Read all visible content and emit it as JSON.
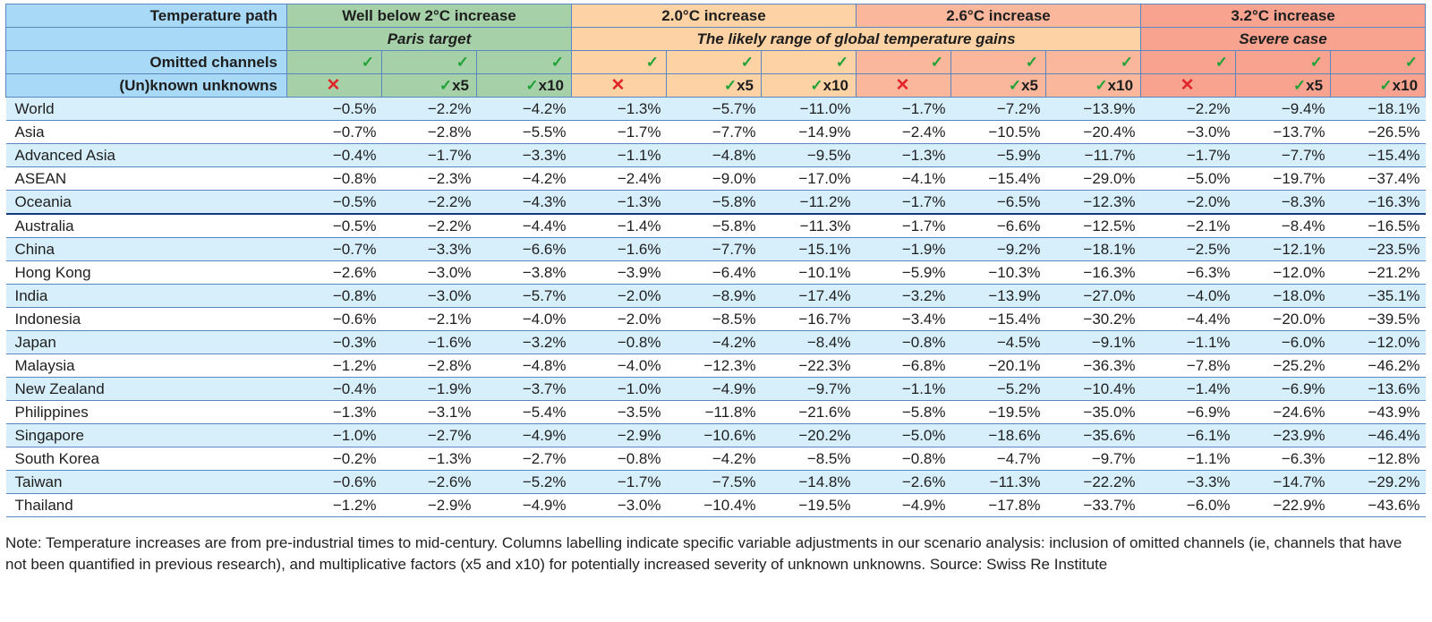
{
  "chart_data": {
    "type": "table",
    "row_header_labels": {
      "temperature_path": "Temperature path",
      "omitted_channels": "Omitted channels",
      "unknown_unknowns": "(Un)known unknowns"
    },
    "scenario_groups": [
      {
        "title": "Well below 2°C increase",
        "color": "#a6d1a8"
      },
      {
        "title": "2.0°C increase",
        "color": "#fdd2a4"
      },
      {
        "title": "2.6°C increase",
        "color": "#fbb79c"
      },
      {
        "title": "3.2°C increase",
        "color": "#f7a38f"
      }
    ],
    "subtitles": {
      "paris": "Paris target",
      "likely_range": "The likely range of global temperature gains",
      "severe": "Severe case"
    },
    "symbols": {
      "tick": "✓",
      "cross": "✕",
      "x5": "x5",
      "x10": "x10"
    },
    "columns": [
      {
        "omitted": true,
        "unknowns": "none"
      },
      {
        "omitted": true,
        "unknowns": "x5"
      },
      {
        "omitted": true,
        "unknowns": "x10"
      },
      {
        "omitted": true,
        "unknowns": "none"
      },
      {
        "omitted": true,
        "unknowns": "x5"
      },
      {
        "omitted": true,
        "unknowns": "x10"
      },
      {
        "omitted": true,
        "unknowns": "none"
      },
      {
        "omitted": true,
        "unknowns": "x5"
      },
      {
        "omitted": true,
        "unknowns": "x10"
      },
      {
        "omitted": true,
        "unknowns": "none"
      },
      {
        "omitted": true,
        "unknowns": "x5"
      },
      {
        "omitted": true,
        "unknowns": "x10"
      }
    ],
    "rows": [
      {
        "region": "World",
        "values": [
          "−0.5%",
          "−2.2%",
          "−4.2%",
          "−1.3%",
          "−5.7%",
          "−11.0%",
          "−1.7%",
          "−7.2%",
          "−13.9%",
          "−2.2%",
          "−9.4%",
          "−18.1%"
        ]
      },
      {
        "region": "Asia",
        "values": [
          "−0.7%",
          "−2.8%",
          "−5.5%",
          "−1.7%",
          "−7.7%",
          "−14.9%",
          "−2.4%",
          "−10.5%",
          "−20.4%",
          "−3.0%",
          "−13.7%",
          "−26.5%"
        ]
      },
      {
        "region": "Advanced Asia",
        "values": [
          "−0.4%",
          "−1.7%",
          "−3.3%",
          "−1.1%",
          "−4.8%",
          "−9.5%",
          "−1.3%",
          "−5.9%",
          "−11.7%",
          "−1.7%",
          "−7.7%",
          "−15.4%"
        ]
      },
      {
        "region": "ASEAN",
        "values": [
          "−0.8%",
          "−2.3%",
          "−4.2%",
          "−2.4%",
          "−9.0%",
          "−17.0%",
          "−4.1%",
          "−15.4%",
          "−29.0%",
          "−5.0%",
          "−19.7%",
          "−37.4%"
        ]
      },
      {
        "region": "Oceania",
        "values": [
          "−0.5%",
          "−2.2%",
          "−4.3%",
          "−1.3%",
          "−5.8%",
          "−11.2%",
          "−1.7%",
          "−6.5%",
          "−12.3%",
          "−2.0%",
          "−8.3%",
          "−16.3%"
        ]
      },
      {
        "region": "Australia",
        "values": [
          "−0.5%",
          "−2.2%",
          "−4.4%",
          "−1.4%",
          "−5.8%",
          "−11.3%",
          "−1.7%",
          "−6.6%",
          "−12.5%",
          "−2.1%",
          "−8.4%",
          "−16.5%"
        ]
      },
      {
        "region": "China",
        "values": [
          "−0.7%",
          "−3.3%",
          "−6.6%",
          "−1.6%",
          "−7.7%",
          "−15.1%",
          "−1.9%",
          "−9.2%",
          "−18.1%",
          "−2.5%",
          "−12.1%",
          "−23.5%"
        ]
      },
      {
        "region": "Hong Kong",
        "values": [
          "−2.6%",
          "−3.0%",
          "−3.8%",
          "−3.9%",
          "−6.4%",
          "−10.1%",
          "−5.9%",
          "−10.3%",
          "−16.3%",
          "−6.3%",
          "−12.0%",
          "−21.2%"
        ]
      },
      {
        "region": "India",
        "values": [
          "−0.8%",
          "−3.0%",
          "−5.7%",
          "−2.0%",
          "−8.9%",
          "−17.4%",
          "−3.2%",
          "−13.9%",
          "−27.0%",
          "−4.0%",
          "−18.0%",
          "−35.1%"
        ]
      },
      {
        "region": "Indonesia",
        "values": [
          "−0.6%",
          "−2.1%",
          "−4.0%",
          "−2.0%",
          "−8.5%",
          "−16.7%",
          "−3.4%",
          "−15.4%",
          "−30.2%",
          "−4.4%",
          "−20.0%",
          "−39.5%"
        ]
      },
      {
        "region": "Japan",
        "values": [
          "−0.3%",
          "−1.6%",
          "−3.2%",
          "−0.8%",
          "−4.2%",
          "−8.4%",
          "−0.8%",
          "−4.5%",
          "−9.1%",
          "−1.1%",
          "−6.0%",
          "−12.0%"
        ]
      },
      {
        "region": "Malaysia",
        "values": [
          "−1.2%",
          "−2.8%",
          "−4.8%",
          "−4.0%",
          "−12.3%",
          "−22.3%",
          "−6.8%",
          "−20.1%",
          "−36.3%",
          "−7.8%",
          "−25.2%",
          "−46.2%"
        ]
      },
      {
        "region": "New Zealand",
        "values": [
          "−0.4%",
          "−1.9%",
          "−3.7%",
          "−1.0%",
          "−4.9%",
          "−9.7%",
          "−1.1%",
          "−5.2%",
          "−10.4%",
          "−1.4%",
          "−6.9%",
          "−13.6%"
        ]
      },
      {
        "region": "Philippines",
        "values": [
          "−1.3%",
          "−3.1%",
          "−5.4%",
          "−3.5%",
          "−11.8%",
          "−21.6%",
          "−5.8%",
          "−19.5%",
          "−35.0%",
          "−6.9%",
          "−24.6%",
          "−43.9%"
        ]
      },
      {
        "region": "Singapore",
        "values": [
          "−1.0%",
          "−2.7%",
          "−4.9%",
          "−2.9%",
          "−10.6%",
          "−20.2%",
          "−5.0%",
          "−18.6%",
          "−35.6%",
          "−6.1%",
          "−23.9%",
          "−46.4%"
        ]
      },
      {
        "region": "South Korea",
        "values": [
          "−0.2%",
          "−1.3%",
          "−2.7%",
          "−0.8%",
          "−4.2%",
          "−8.5%",
          "−0.8%",
          "−4.7%",
          "−9.7%",
          "−1.1%",
          "−6.3%",
          "−12.8%"
        ]
      },
      {
        "region": "Taiwan",
        "values": [
          "−0.6%",
          "−2.6%",
          "−5.2%",
          "−1.7%",
          "−7.5%",
          "−14.8%",
          "−2.6%",
          "−11.3%",
          "−22.2%",
          "−3.3%",
          "−14.7%",
          "−29.2%"
        ]
      },
      {
        "region": "Thailand",
        "values": [
          "−1.2%",
          "−2.9%",
          "−4.9%",
          "−3.0%",
          "−10.4%",
          "−19.5%",
          "−4.9%",
          "−17.8%",
          "−33.7%",
          "−6.0%",
          "−22.9%",
          "−43.6%"
        ]
      }
    ],
    "note": "Note: Temperature increases are from pre-industrial times to mid-century. Columns labelling indicate specific variable adjustments in our scenario analysis: inclusion of omitted channels (ie, channels that have not been quantified in previous research), and multiplicative factors (x5 and x10) for potentially increased severity of unknown unknowns. Source: Swiss Re Institute"
  }
}
